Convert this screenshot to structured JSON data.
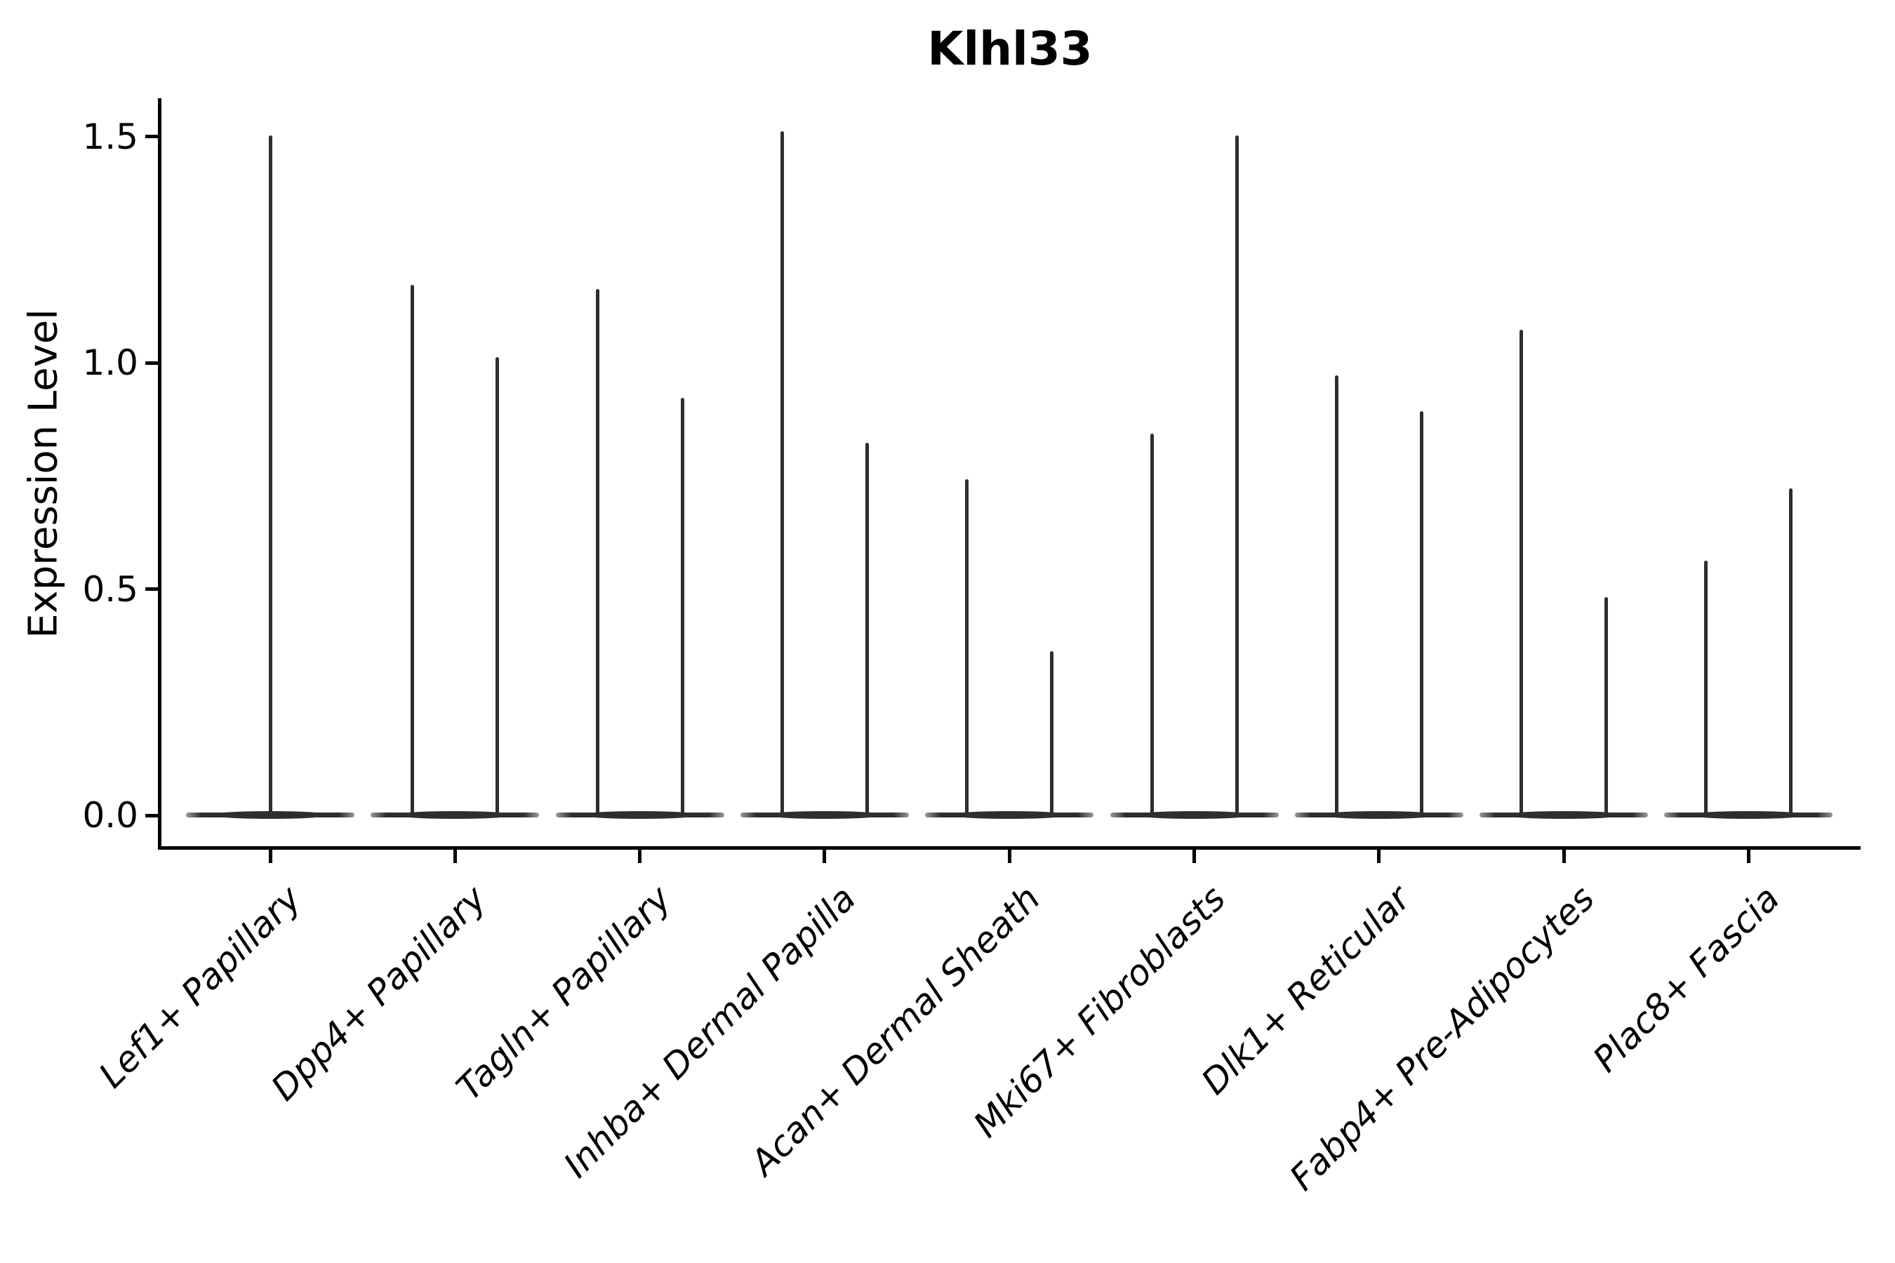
{
  "chart_data": {
    "type": "violin",
    "title": "Klhl33",
    "xlabel": "",
    "ylabel": "Expression Level",
    "ylim": [
      0,
      1.55
    ],
    "grid": false,
    "legend": "none",
    "yticks": [
      {
        "label": "0.0",
        "value": 0.0
      },
      {
        "label": "0.5",
        "value": 0.5
      },
      {
        "label": "1.0",
        "value": 1.0
      },
      {
        "label": "1.5",
        "value": 1.5
      }
    ],
    "categories": [
      {
        "label": "Lef1+ Papillary",
        "violin_max": [
          1.5
        ]
      },
      {
        "label": "Dpp4+ Papillary",
        "violin_max": [
          1.17,
          1.01
        ]
      },
      {
        "label": "Tagln+ Papillary",
        "violin_max": [
          1.16,
          0.92
        ]
      },
      {
        "label": "Inhba+ Dermal Papilla",
        "violin_max": [
          1.51,
          0.82
        ]
      },
      {
        "label": "Acan+ Dermal Sheath",
        "violin_max": [
          0.74,
          0.36
        ]
      },
      {
        "label": "Mki67+ Fibroblasts",
        "violin_max": [
          0.84,
          1.5
        ]
      },
      {
        "label": "Dlk1+ Reticular",
        "violin_max": [
          0.97,
          0.89
        ]
      },
      {
        "label": "Fabp4+ Pre-Adipocytes",
        "violin_max": [
          1.07,
          0.48
        ]
      },
      {
        "label": "Plac8+ Fascia",
        "violin_max": [
          0.56,
          0.72
        ]
      }
    ],
    "colors": {
      "violin": "#2e2e2e",
      "violin_tip": "#9a9a9a",
      "axis": "#000000",
      "text": "#000000",
      "background": "#ffffff"
    }
  }
}
